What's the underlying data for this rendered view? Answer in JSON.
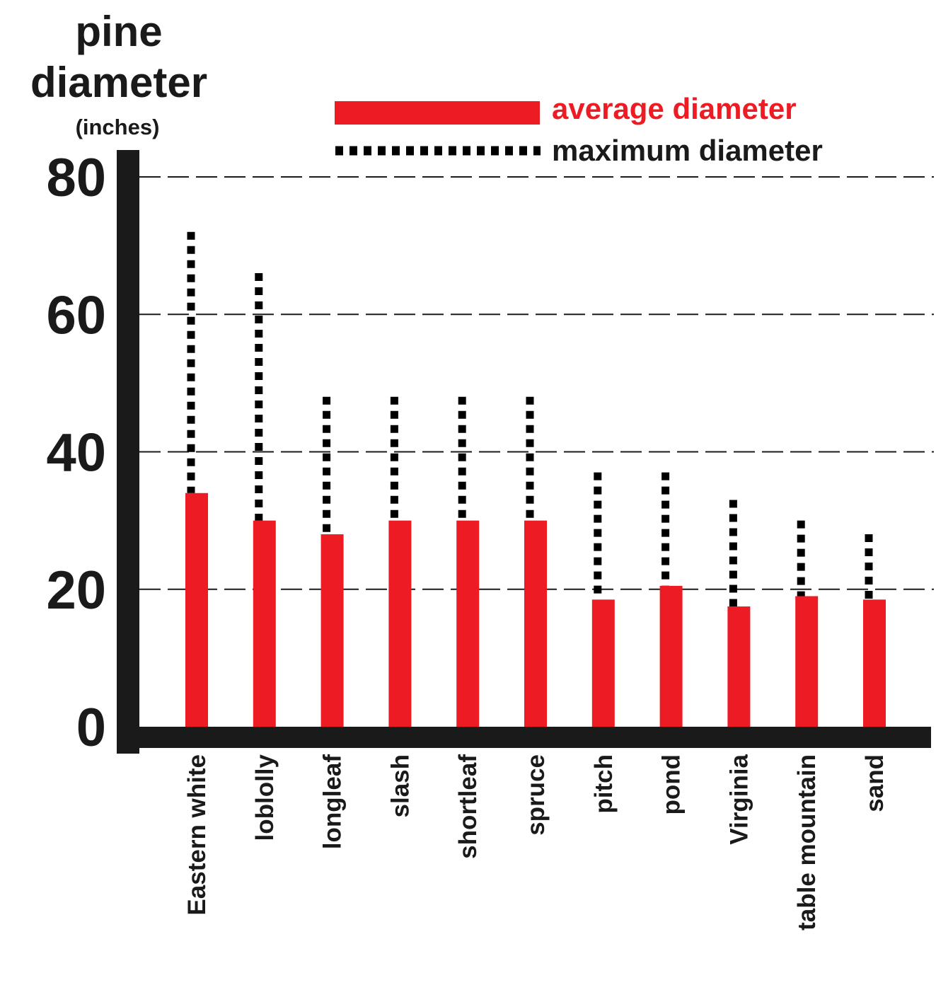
{
  "chart_data": {
    "type": "bar",
    "title": "",
    "ylabel_line1": "pine",
    "ylabel_line2": "diameter",
    "ylabel_unit": "(inches)",
    "xlabel": "",
    "ylim": [
      0,
      80
    ],
    "yticks": [
      0,
      20,
      40,
      60,
      80
    ],
    "grid": "dashed horizontal at 20, 40, 60, 80",
    "legend_position": "top-right",
    "categories": [
      "Eastern white",
      "loblolly",
      "longleaf",
      "slash",
      "shortleaf",
      "spruce",
      "pitch",
      "pond",
      "Virginia",
      "table mountain",
      "sand"
    ],
    "series": [
      {
        "name": "average diameter",
        "style": "solid bar",
        "color": "#ed1c24",
        "values": [
          34,
          30,
          28,
          30,
          30,
          30,
          18.5,
          20.5,
          17.5,
          19,
          18.5
        ]
      },
      {
        "name": "maximum diameter",
        "style": "dotted line",
        "color": "#000000",
        "values": [
          72,
          66,
          48,
          48,
          48,
          48,
          37,
          37,
          33,
          30,
          28
        ]
      }
    ]
  }
}
